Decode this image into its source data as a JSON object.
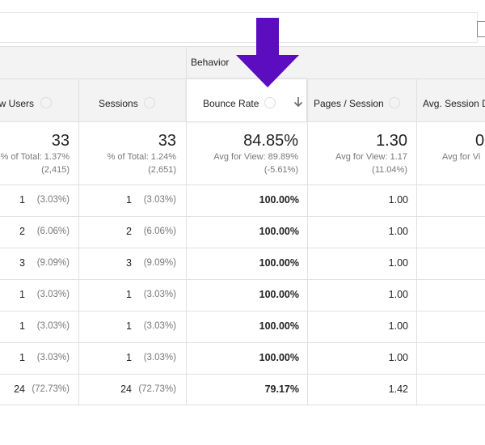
{
  "table": {
    "group_header": "Behavior",
    "columns": [
      "New Users",
      "Sessions",
      "Bounce Rate",
      "Pages / Session",
      "Avg. Session Duration"
    ],
    "summary": [
      {
        "value": "33",
        "lines": [
          "% of Total: 1.37%",
          "(2,415)"
        ]
      },
      {
        "value": "33",
        "lines": [
          "% of Total: 1.24%",
          "(2,651)"
        ]
      },
      {
        "value": "84.85%",
        "lines": [
          "Avg for View: 89.89%",
          "(-5.61%)"
        ]
      },
      {
        "value": "1.30",
        "lines": [
          "Avg for View: 1.17",
          "(11.04%)"
        ]
      },
      {
        "value": "0",
        "lines": [
          "Avg for Vi"
        ]
      }
    ],
    "rows": [
      [
        {
          "value": "1",
          "pct": "(3.03%)"
        },
        {
          "value": "1",
          "pct": "(3.03%)"
        },
        "100.00%",
        "1.00"
      ],
      [
        {
          "value": "2",
          "pct": "(6.06%)"
        },
        {
          "value": "2",
          "pct": "(6.06%)"
        },
        "100.00%",
        "1.00"
      ],
      [
        {
          "value": "3",
          "pct": "(9.09%)"
        },
        {
          "value": "3",
          "pct": "(9.09%)"
        },
        "100.00%",
        "1.00"
      ],
      [
        {
          "value": "1",
          "pct": "(3.03%)"
        },
        {
          "value": "1",
          "pct": "(3.03%)"
        },
        "100.00%",
        "1.00"
      ],
      [
        {
          "value": "1",
          "pct": "(3.03%)"
        },
        {
          "value": "1",
          "pct": "(3.03%)"
        },
        "100.00%",
        "1.00"
      ],
      [
        {
          "value": "1",
          "pct": "(3.03%)"
        },
        {
          "value": "1",
          "pct": "(3.03%)"
        },
        "100.00%",
        "1.00"
      ],
      [
        {
          "value": "24",
          "pct": "(72.73%)"
        },
        {
          "value": "24",
          "pct": "(72.73%)"
        },
        "79.17%",
        "1.42"
      ]
    ]
  }
}
